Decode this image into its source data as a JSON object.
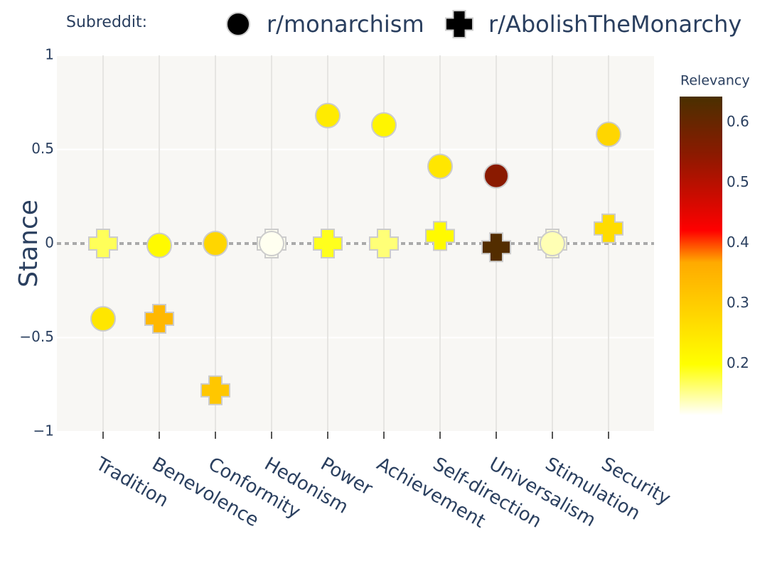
{
  "chart_data": {
    "type": "scatter",
    "legend_title": "Subreddit:",
    "y_label": "Stance",
    "categories": [
      "Tradition",
      "Benevolence",
      "Conformity",
      "Hedonism",
      "Power",
      "Achievement",
      "Self-direction",
      "Universalism",
      "Stimulation",
      "Security"
    ],
    "series": [
      {
        "name": "r/monarchism",
        "symbol": "circle",
        "values": [
          -0.4,
          -0.01,
          0,
          0,
          0.68,
          0.63,
          0.41,
          0.36,
          0,
          0.58
        ],
        "relevancy": [
          0.25,
          0.21,
          0.28,
          0.12,
          0.24,
          0.22,
          0.25,
          0.55,
          0.14,
          0.28
        ]
      },
      {
        "name": "r/AbolishTheMonarchy",
        "symbol": "cross",
        "values": [
          0,
          -0.4,
          -0.78,
          0,
          0,
          0,
          0.04,
          -0.02,
          0,
          0.08
        ],
        "relevancy": [
          0.17,
          0.34,
          0.31,
          0.12,
          0.19,
          0.16,
          0.21,
          0.63,
          0.13,
          0.27
        ]
      }
    ],
    "ylim": [
      -1,
      1
    ],
    "yticks": [
      {
        "value": -1,
        "label": "−1"
      },
      {
        "value": -0.5,
        "label": "−0.5"
      },
      0,
      0.5,
      1
    ],
    "hline": 0,
    "colorbar": {
      "title": "Relevancy",
      "cmin": 0.115,
      "cmax": 0.643,
      "ticks": [
        0.2,
        0.3,
        0.4,
        0.5,
        0.6
      ],
      "colorscale": [
        [
          0,
          "#ffffff"
        ],
        [
          0.16,
          "#ffff00"
        ],
        [
          0.48,
          "#ffaa00"
        ],
        [
          0.58,
          "#ff0000"
        ],
        [
          0.82,
          "#8b1a00"
        ],
        [
          1,
          "#4a3000"
        ]
      ]
    },
    "grid": true
  }
}
